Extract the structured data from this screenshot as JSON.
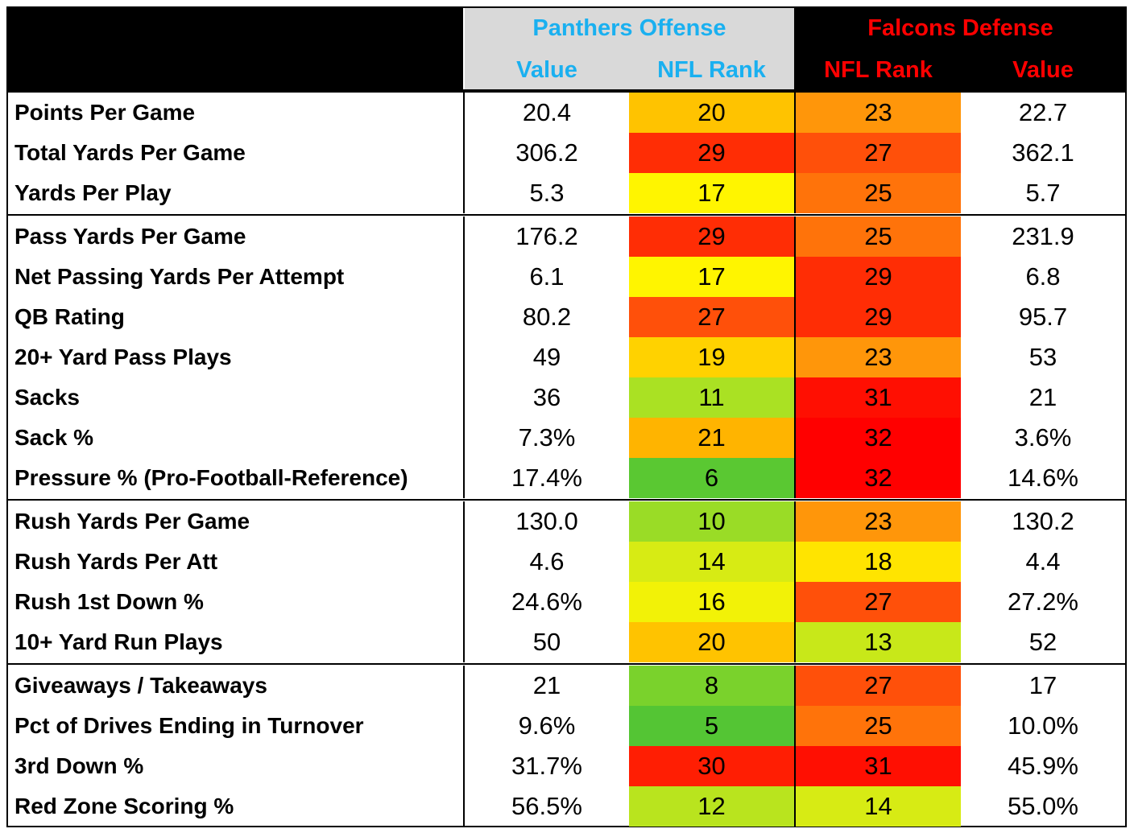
{
  "header": {
    "offense_title": "Panthers Offense",
    "defense_title": "Falcons Defense",
    "offense_value_label": "Value",
    "offense_rank_label": "NFL Rank",
    "defense_rank_label": "NFL Rank",
    "defense_value_label": "Value",
    "offense_color": "#1ab0f0",
    "defense_color": "#ff0000"
  },
  "sections": [
    [
      {
        "label": "Points Per Game",
        "off_value": "20.4",
        "off_rank": "20",
        "def_rank": "23",
        "def_value": "22.7"
      },
      {
        "label": "Total Yards Per Game",
        "off_value": "306.2",
        "off_rank": "29",
        "def_rank": "27",
        "def_value": "362.1"
      },
      {
        "label": "Yards Per Play",
        "off_value": "5.3",
        "off_rank": "17",
        "def_rank": "25",
        "def_value": "5.7"
      }
    ],
    [
      {
        "label": "Pass Yards Per Game",
        "off_value": "176.2",
        "off_rank": "29",
        "def_rank": "25",
        "def_value": "231.9"
      },
      {
        "label": "Net Passing Yards Per Attempt",
        "off_value": "6.1",
        "off_rank": "17",
        "def_rank": "29",
        "def_value": "6.8"
      },
      {
        "label": "QB Rating",
        "off_value": "80.2",
        "off_rank": "27",
        "def_rank": "29",
        "def_value": "95.7"
      },
      {
        "label": "20+ Yard Pass Plays",
        "off_value": "49",
        "off_rank": "19",
        "def_rank": "23",
        "def_value": "53"
      },
      {
        "label": "Sacks",
        "off_value": "36",
        "off_rank": "11",
        "def_rank": "31",
        "def_value": "21"
      },
      {
        "label": "Sack %",
        "off_value": "7.3%",
        "off_rank": "21",
        "def_rank": "32",
        "def_value": "3.6%"
      },
      {
        "label": "Pressure % (Pro-Football-Reference)",
        "off_value": "17.4%",
        "off_rank": "6",
        "def_rank": "32",
        "def_value": "14.6%"
      }
    ],
    [
      {
        "label": "Rush Yards Per Game",
        "off_value": "130.0",
        "off_rank": "10",
        "def_rank": "23",
        "def_value": "130.2"
      },
      {
        "label": "Rush Yards Per Att",
        "off_value": "4.6",
        "off_rank": "14",
        "def_rank": "18",
        "def_value": "4.4"
      },
      {
        "label": "Rush 1st Down %",
        "off_value": "24.6%",
        "off_rank": "16",
        "def_rank": "27",
        "def_value": "27.2%"
      },
      {
        "label": "10+ Yard Run Plays",
        "off_value": "50",
        "off_rank": "20",
        "def_rank": "13",
        "def_value": "52"
      }
    ],
    [
      {
        "label": "Giveaways / Takeaways",
        "off_value": "21",
        "off_rank": "8",
        "def_rank": "27",
        "def_value": "17"
      },
      {
        "label": "Pct of Drives Ending in Turnover",
        "off_value": "9.6%",
        "off_rank": "5",
        "def_rank": "25",
        "def_value": "10.0%"
      },
      {
        "label": "3rd Down %",
        "off_value": "31.7%",
        "off_rank": "30",
        "def_rank": "31",
        "def_value": "45.9%"
      },
      {
        "label": "Red Zone Scoring %",
        "off_value": "56.5%",
        "off_rank": "12",
        "def_rank": "14",
        "def_value": "55.0%"
      }
    ]
  ]
}
